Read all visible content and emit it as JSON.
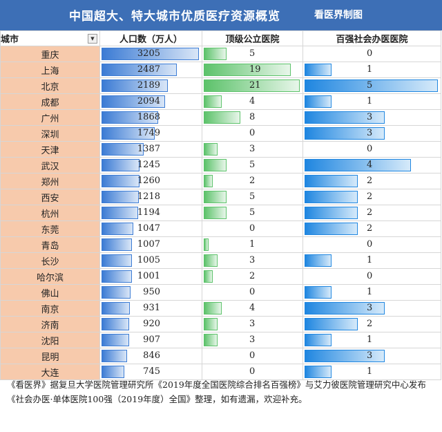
{
  "header": {
    "title": "中国超大、特大城市优质医疗资源概览",
    "credit": "看医界制图"
  },
  "columns": {
    "city": "城市",
    "population": "人口数（万人）",
    "top_public": "顶级公立医院",
    "private_top100": "百强社会办医医院"
  },
  "filter_icon": "dropdown-arrow-icon",
  "rows": [
    {
      "city": "重庆",
      "population": 3205,
      "top_public": 5,
      "private": 0
    },
    {
      "city": "上海",
      "population": 2487,
      "top_public": 19,
      "private": 1
    },
    {
      "city": "北京",
      "population": 2189,
      "top_public": 21,
      "private": 5
    },
    {
      "city": "成都",
      "population": 2094,
      "top_public": 4,
      "private": 1
    },
    {
      "city": "广州",
      "population": 1868,
      "top_public": 8,
      "private": 3
    },
    {
      "city": "深圳",
      "population": 1749,
      "top_public": 0,
      "private": 3
    },
    {
      "city": "天津",
      "population": 1387,
      "top_public": 3,
      "private": 0
    },
    {
      "city": "武汉",
      "population": 1245,
      "top_public": 5,
      "private": 4
    },
    {
      "city": "郑州",
      "population": 1260,
      "top_public": 2,
      "private": 2
    },
    {
      "city": "西安",
      "population": 1218,
      "top_public": 5,
      "private": 2
    },
    {
      "city": "杭州",
      "population": 1194,
      "top_public": 5,
      "private": 2
    },
    {
      "city": "东莞",
      "population": 1047,
      "top_public": 0,
      "private": 2
    },
    {
      "city": "青岛",
      "population": 1007,
      "top_public": 1,
      "private": 0
    },
    {
      "city": "长沙",
      "population": 1005,
      "top_public": 3,
      "private": 1
    },
    {
      "city": "哈尔滨",
      "population": 1001,
      "top_public": 2,
      "private": 0
    },
    {
      "city": "佛山",
      "population": 950,
      "top_public": 0,
      "private": 1
    },
    {
      "city": "南京",
      "population": 931,
      "top_public": 4,
      "private": 3
    },
    {
      "city": "济南",
      "population": 920,
      "top_public": 3,
      "private": 2
    },
    {
      "city": "沈阳",
      "population": 907,
      "top_public": 3,
      "private": 1
    },
    {
      "city": "昆明",
      "population": 846,
      "top_public": 0,
      "private": 3
    },
    {
      "city": "大连",
      "population": 745,
      "top_public": 0,
      "private": 1
    }
  ],
  "footer": "《看医界》据复旦大学医院管理研究所《2019年度全国医院综合排名百强榜》与艾力彼医院管理研究中心发布《社会办医·单体医院100强（2019年度）全国》整理，如有遗漏，欢迎补充。",
  "colors": {
    "title_bg": "#3d6fb6",
    "city_bg": "#f7caac",
    "pop_bar": "#3b7bd4",
    "top_bar": "#5cc26a",
    "private_bar": "#1f86e0"
  }
}
